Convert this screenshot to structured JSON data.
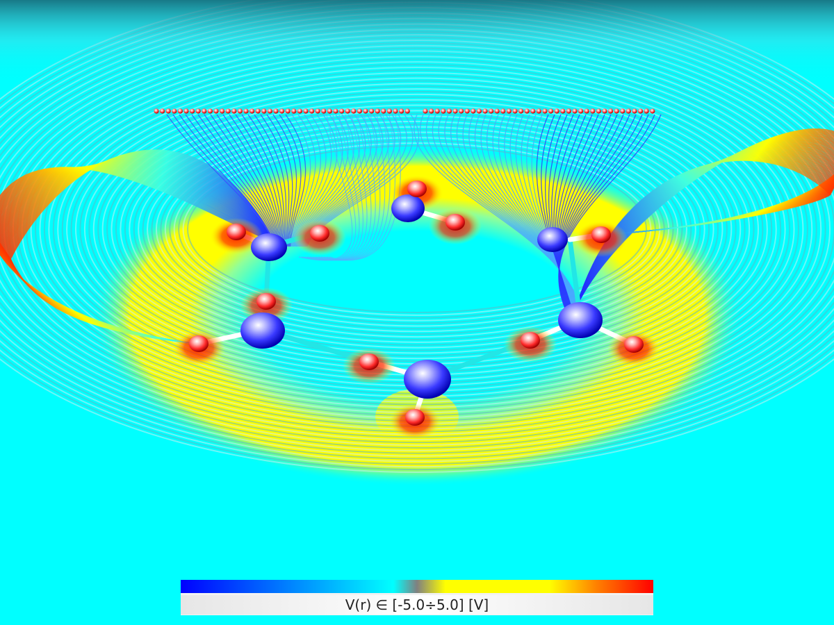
{
  "colorbar": {
    "label": "V(r) ∈ [-5.0÷5.0] [V]",
    "min": -5.0,
    "max": 5.0,
    "colors": [
      "#0000ff",
      "#00ffff",
      "#808080",
      "#ffff00",
      "#ff0000"
    ]
  },
  "scene": {
    "background_color": "#00ffff",
    "atom_colors": {
      "large": "#3a3aff",
      "small": "#ff2a2a"
    },
    "bond_colors": [
      "#ffffff",
      "#22e6e6"
    ]
  }
}
